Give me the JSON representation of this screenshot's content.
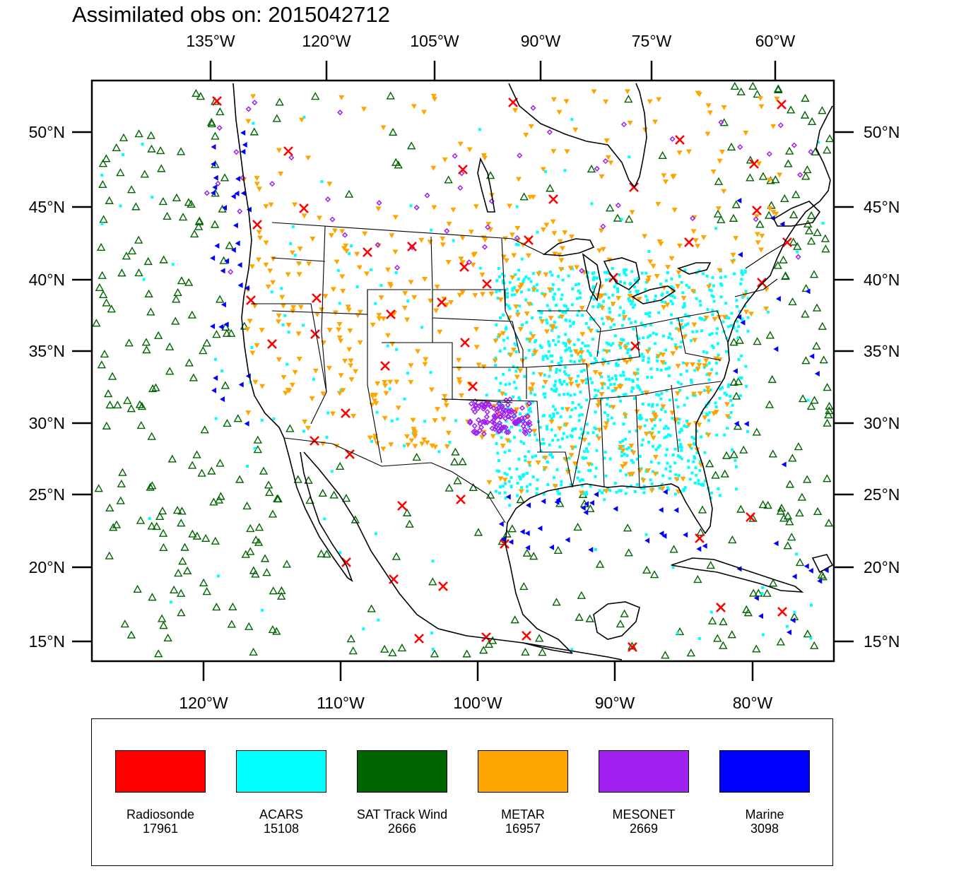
{
  "title": "Assimilated obs on: 2015042712",
  "map": {
    "top_lon_labels": [
      "135°W",
      "120°W",
      "105°W",
      "90°W",
      "75°W",
      "60°W"
    ],
    "bottom_lon_labels": [
      "120°W",
      "110°W",
      "100°W",
      "90°W",
      "80°W"
    ],
    "lat_labels": [
      "50°N",
      "45°N",
      "40°N",
      "35°N",
      "30°N",
      "25°N",
      "20°N",
      "15°N"
    ],
    "extent": {
      "lon_min": -128,
      "lon_max": -74,
      "lat_min": 14,
      "lat_max": 52
    }
  },
  "legend": [
    {
      "name": "Radiosonde",
      "count": "17961",
      "color": "#ff0000",
      "marker": "x-mark"
    },
    {
      "name": "ACARS",
      "count": "15108",
      "color": "#00ffff",
      "marker": "dot"
    },
    {
      "name": "SAT Track Wind",
      "count": "2666",
      "color": "#006400",
      "marker": "triangle-up"
    },
    {
      "name": "METAR",
      "count": "16957",
      "color": "#ffa500",
      "marker": "triangle-down"
    },
    {
      "name": "MESONET",
      "count": "2669",
      "color": "#a020f0",
      "marker": "diamond"
    },
    {
      "name": "Marine",
      "count": "3098",
      "color": "#0000ff",
      "marker": "triangle-left"
    }
  ]
}
